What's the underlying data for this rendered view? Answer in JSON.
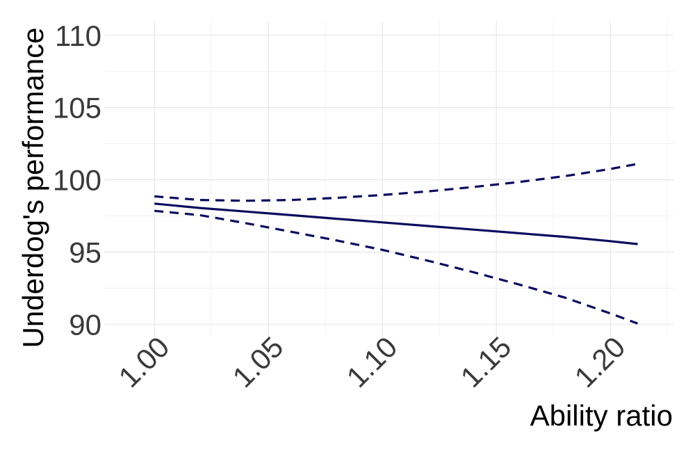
{
  "chart_data": {
    "type": "line",
    "title": "",
    "xlabel": "Ability ratio",
    "ylabel": "Underdog's performance",
    "xlim": [
      0.978,
      1.228
    ],
    "ylim": [
      89.1,
      111.0
    ],
    "x_ticks": [
      1.0,
      1.05,
      1.1,
      1.15,
      1.2
    ],
    "x_tick_labels": [
      "1.00",
      "1.05",
      "1.10",
      "1.15",
      "1.20"
    ],
    "y_ticks": [
      90,
      95,
      100,
      105,
      110
    ],
    "y_tick_labels": [
      "90",
      "95",
      "100",
      "105",
      "110"
    ],
    "grid": true,
    "legend": "none",
    "line_color": "#0b0b5e",
    "x": [
      1.0,
      1.02,
      1.04,
      1.06,
      1.08,
      1.1,
      1.12,
      1.14,
      1.16,
      1.18,
      1.2,
      1.212
    ],
    "series": [
      {
        "style": "solid",
        "values": [
          98.35,
          98.05,
          97.8,
          97.55,
          97.3,
          97.05,
          96.8,
          96.55,
          96.3,
          96.05,
          95.75,
          95.55
        ]
      },
      {
        "style": "dashed",
        "values": [
          98.85,
          98.6,
          98.55,
          98.6,
          98.75,
          98.95,
          99.2,
          99.5,
          99.85,
          100.25,
          100.75,
          101.1
        ]
      },
      {
        "style": "dashed",
        "values": [
          97.85,
          97.55,
          97.0,
          96.4,
          95.8,
          95.15,
          94.4,
          93.6,
          92.75,
          91.85,
          90.75,
          90.05
        ]
      }
    ]
  }
}
